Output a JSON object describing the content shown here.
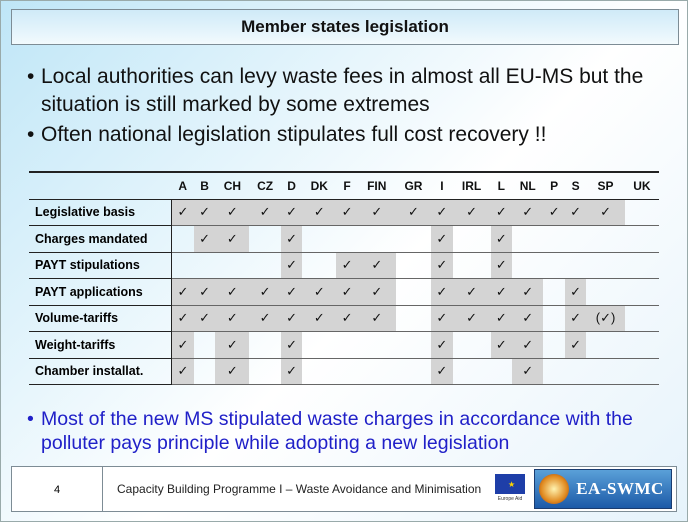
{
  "title": "Member states legislation",
  "bullets": [
    "Local authorities can levy waste fees in almost all EU-MS but the situation is still marked by some extremes",
    "Often national legislation stipulates full cost recovery !!"
  ],
  "bullet_symbol": "•",
  "table": {
    "columns": [
      "A",
      "B",
      "CH",
      "CZ",
      "D",
      "DK",
      "F",
      "FIN",
      "GR",
      "I",
      "IRL",
      "L",
      "NL",
      "P",
      "S",
      "SP",
      "UK"
    ],
    "check_symbol": "✓",
    "rows": [
      {
        "label": "Legislative basis",
        "cells": [
          "✓",
          "✓",
          "✓",
          "✓",
          "✓",
          "✓",
          "✓",
          "✓",
          "✓",
          "✓",
          "✓",
          "✓",
          "✓",
          "✓",
          "✓",
          "✓",
          ""
        ]
      },
      {
        "label": "Charges mandated",
        "cells": [
          "",
          "✓",
          "✓",
          "",
          "✓",
          "",
          "",
          "",
          "",
          "✓",
          "",
          "✓",
          "",
          "",
          "",
          "",
          ""
        ]
      },
      {
        "label": "PAYT stipulations",
        "cells": [
          "",
          "",
          "",
          "",
          "✓",
          "",
          "✓",
          "✓",
          "",
          "✓",
          "",
          "✓",
          "",
          "",
          "",
          "",
          ""
        ]
      },
      {
        "label": "PAYT applications",
        "cells": [
          "✓",
          "✓",
          "✓",
          "✓",
          "✓",
          "✓",
          "✓",
          "✓",
          "",
          "✓",
          "✓",
          "✓",
          "✓",
          "",
          "✓",
          "",
          ""
        ]
      },
      {
        "label": "Volume-tariffs",
        "cells": [
          "✓",
          "✓",
          "✓",
          "✓",
          "✓",
          "✓",
          "✓",
          "✓",
          "",
          "✓",
          "✓",
          "✓",
          "✓",
          "",
          "✓",
          "(✓)",
          ""
        ]
      },
      {
        "label": "Weight-tariffs",
        "cells": [
          "✓",
          "",
          "✓",
          "",
          "✓",
          "",
          "",
          "",
          "",
          "✓",
          "",
          "✓",
          "✓",
          "",
          "✓",
          "",
          ""
        ]
      },
      {
        "label": "Chamber installat.",
        "cells": [
          "✓",
          "",
          "✓",
          "",
          "✓",
          "",
          "",
          "",
          "",
          "✓",
          "",
          "",
          "✓",
          "",
          "",
          "",
          ""
        ]
      }
    ]
  },
  "conclusion": "Most of the new MS stipulated waste charges in accordance with the polluter pays principle while adopting a new legislation",
  "footer": {
    "page_number": "4",
    "text": "Capacity Building Programme I – Waste Avoidance and Minimisation",
    "eu_logo_caption": "Europe Aid",
    "ea_logo_text": "EA-SWMC"
  },
  "colors": {
    "conclusion_text": "#2020c8",
    "cell_highlight": "#d4d4d4"
  }
}
